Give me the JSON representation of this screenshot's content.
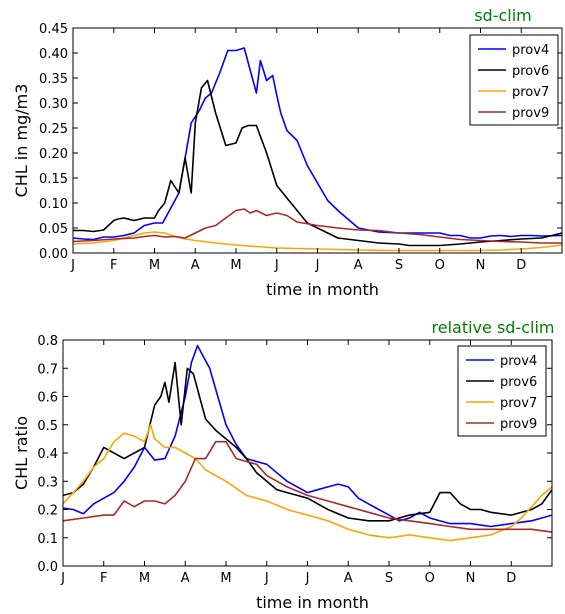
{
  "chart_data": [
    {
      "type": "line",
      "title": "sd-clim",
      "title_color": "#008000",
      "xlabel": "time in month",
      "ylabel": "CHL in mg/m3",
      "x_tick_labels": [
        "J",
        "F",
        "M",
        "A",
        "M",
        "J",
        "J",
        "A",
        "S",
        "O",
        "N",
        "D"
      ],
      "y_ticks": [
        "0.00",
        "0.05",
        "0.10",
        "0.15",
        "0.20",
        "0.25",
        "0.30",
        "0.35",
        "0.40",
        "0.45"
      ],
      "ylim": [
        0,
        0.45
      ],
      "xlim": [
        0,
        12
      ],
      "grid": false,
      "legend_position": "top-right",
      "series": [
        {
          "name": "prov4",
          "color": "#0000ff",
          "x": [
            0,
            0.25,
            0.5,
            0.75,
            1,
            1.25,
            1.5,
            1.75,
            2,
            2.2,
            2.4,
            2.6,
            2.75,
            2.9,
            3.1,
            3.25,
            3.4,
            3.6,
            3.8,
            4.0,
            4.2,
            4.35,
            4.5,
            4.6,
            4.75,
            4.9,
            5.0,
            5.1,
            5.25,
            5.5,
            5.75,
            6.0,
            6.25,
            6.5,
            7.0,
            7.5,
            8.0,
            8.5,
            9.0,
            9.25,
            9.5,
            9.75,
            10.0,
            10.25,
            10.5,
            10.75,
            11.0,
            11.25,
            11.5,
            12.0
          ],
          "y": [
            0.03,
            0.028,
            0.027,
            0.032,
            0.032,
            0.035,
            0.04,
            0.055,
            0.06,
            0.06,
            0.09,
            0.12,
            0.19,
            0.26,
            0.285,
            0.31,
            0.32,
            0.36,
            0.405,
            0.405,
            0.41,
            0.365,
            0.32,
            0.385,
            0.345,
            0.355,
            0.315,
            0.28,
            0.245,
            0.225,
            0.175,
            0.14,
            0.105,
            0.085,
            0.05,
            0.042,
            0.04,
            0.04,
            0.04,
            0.035,
            0.035,
            0.03,
            0.03,
            0.034,
            0.035,
            0.033,
            0.035,
            0.035,
            0.034,
            0.035
          ]
        },
        {
          "name": "prov6",
          "color": "#000000",
          "x": [
            0,
            0.25,
            0.5,
            0.75,
            1.0,
            1.1,
            1.25,
            1.5,
            1.75,
            2.0,
            2.1,
            2.25,
            2.4,
            2.6,
            2.75,
            2.9,
            3.0,
            3.15,
            3.3,
            3.5,
            3.75,
            4.0,
            4.15,
            4.3,
            4.5,
            4.75,
            5.0,
            5.25,
            5.5,
            5.75,
            6.0,
            6.25,
            6.5,
            7.0,
            7.5,
            8.0,
            8.25,
            8.5,
            9.0,
            9.5,
            10.0,
            10.5,
            11.0,
            11.5,
            12.0
          ],
          "y": [
            0.045,
            0.045,
            0.043,
            0.046,
            0.065,
            0.068,
            0.07,
            0.065,
            0.07,
            0.07,
            0.085,
            0.1,
            0.145,
            0.12,
            0.19,
            0.12,
            0.26,
            0.33,
            0.345,
            0.28,
            0.215,
            0.22,
            0.25,
            0.255,
            0.255,
            0.2,
            0.135,
            0.11,
            0.085,
            0.06,
            0.05,
            0.04,
            0.03,
            0.025,
            0.02,
            0.018,
            0.015,
            0.015,
            0.015,
            0.018,
            0.022,
            0.025,
            0.028,
            0.03,
            0.04
          ]
        },
        {
          "name": "prov7",
          "color": "#ffa500",
          "x": [
            0,
            0.5,
            1.0,
            1.5,
            1.75,
            2.0,
            2.25,
            2.5,
            2.75,
            3.0,
            3.5,
            4.0,
            4.5,
            5.0,
            5.5,
            6.0,
            7.0,
            8.0,
            9.0,
            10.0,
            10.5,
            11.0,
            11.5,
            12.0
          ],
          "y": [
            0.018,
            0.02,
            0.025,
            0.035,
            0.04,
            0.042,
            0.04,
            0.033,
            0.028,
            0.025,
            0.02,
            0.016,
            0.013,
            0.01,
            0.009,
            0.008,
            0.006,
            0.005,
            0.005,
            0.005,
            0.006,
            0.008,
            0.011,
            0.016
          ]
        },
        {
          "name": "prov9",
          "color": "#a52a2a",
          "x": [
            0,
            0.5,
            1.0,
            1.5,
            1.75,
            2.0,
            2.25,
            2.5,
            2.75,
            3.0,
            3.25,
            3.5,
            3.75,
            4.0,
            4.2,
            4.35,
            4.5,
            4.75,
            5.0,
            5.25,
            5.5,
            6.0,
            6.5,
            7.0,
            7.5,
            8.0,
            8.5,
            9.0,
            9.5,
            10.0,
            10.5,
            11.0,
            11.5,
            12.0
          ],
          "y": [
            0.023,
            0.025,
            0.028,
            0.03,
            0.033,
            0.035,
            0.032,
            0.033,
            0.03,
            0.04,
            0.05,
            0.055,
            0.07,
            0.085,
            0.088,
            0.08,
            0.085,
            0.075,
            0.08,
            0.075,
            0.062,
            0.055,
            0.05,
            0.046,
            0.045,
            0.04,
            0.037,
            0.032,
            0.027,
            0.025,
            0.023,
            0.022,
            0.02,
            0.02
          ]
        }
      ]
    },
    {
      "type": "line",
      "title": "relative sd-clim",
      "title_color": "#008000",
      "xlabel": "time in month",
      "ylabel": "CHL ratio",
      "x_tick_labels": [
        "J",
        "F",
        "M",
        "A",
        "M",
        "J",
        "J",
        "A",
        "S",
        "O",
        "N",
        "D"
      ],
      "y_ticks": [
        "0.0",
        "0.1",
        "0.2",
        "0.3",
        "0.4",
        "0.5",
        "0.6",
        "0.7",
        "0.8"
      ],
      "ylim": [
        0,
        0.8
      ],
      "xlim": [
        0,
        12
      ],
      "grid": false,
      "legend_position": "top-right",
      "series": [
        {
          "name": "prov4",
          "color": "#0000ff",
          "x": [
            0,
            0.25,
            0.5,
            0.75,
            1.0,
            1.25,
            1.5,
            1.75,
            2.0,
            2.25,
            2.5,
            2.75,
            3.0,
            3.15,
            3.3,
            3.45,
            3.6,
            3.8,
            4.0,
            4.25,
            4.5,
            4.75,
            5.0,
            5.25,
            5.5,
            6.0,
            6.25,
            6.5,
            6.75,
            7.0,
            7.25,
            7.5,
            7.75,
            8.0,
            8.25,
            8.5,
            8.75,
            9.0,
            9.5,
            10.0,
            10.5,
            11.0,
            11.5,
            11.75,
            12.0
          ],
          "y": [
            0.205,
            0.2,
            0.185,
            0.22,
            0.24,
            0.26,
            0.3,
            0.35,
            0.42,
            0.375,
            0.38,
            0.46,
            0.6,
            0.72,
            0.78,
            0.74,
            0.7,
            0.6,
            0.5,
            0.43,
            0.38,
            0.37,
            0.36,
            0.33,
            0.3,
            0.26,
            0.27,
            0.28,
            0.29,
            0.28,
            0.24,
            0.22,
            0.2,
            0.18,
            0.16,
            0.17,
            0.19,
            0.17,
            0.15,
            0.15,
            0.14,
            0.15,
            0.16,
            0.17,
            0.18
          ]
        },
        {
          "name": "prov6",
          "color": "#000000",
          "x": [
            0,
            0.25,
            0.5,
            0.75,
            1.0,
            1.25,
            1.5,
            1.75,
            2.0,
            2.25,
            2.4,
            2.5,
            2.6,
            2.75,
            2.9,
            3.05,
            3.2,
            3.35,
            3.5,
            3.75,
            4.0,
            4.25,
            4.5,
            4.75,
            5.0,
            5.25,
            5.5,
            5.75,
            6.0,
            6.5,
            7.0,
            7.5,
            8.0,
            8.5,
            9.0,
            9.25,
            9.5,
            9.75,
            10.0,
            10.25,
            10.5,
            11.0,
            11.5,
            11.75,
            12.0
          ],
          "y": [
            0.25,
            0.26,
            0.29,
            0.35,
            0.42,
            0.4,
            0.38,
            0.4,
            0.42,
            0.57,
            0.6,
            0.65,
            0.58,
            0.72,
            0.5,
            0.7,
            0.68,
            0.6,
            0.52,
            0.48,
            0.45,
            0.42,
            0.38,
            0.33,
            0.3,
            0.27,
            0.26,
            0.25,
            0.24,
            0.2,
            0.17,
            0.16,
            0.16,
            0.18,
            0.19,
            0.26,
            0.26,
            0.22,
            0.2,
            0.2,
            0.19,
            0.18,
            0.2,
            0.22,
            0.27
          ]
        },
        {
          "name": "prov7",
          "color": "#ffa500",
          "x": [
            0,
            0.25,
            0.5,
            0.75,
            1.0,
            1.25,
            1.5,
            1.75,
            2.0,
            2.15,
            2.25,
            2.5,
            2.75,
            3.0,
            3.25,
            3.5,
            4.0,
            4.5,
            5.0,
            5.5,
            6.0,
            6.5,
            7.0,
            7.5,
            8.0,
            8.5,
            9.0,
            9.5,
            10.0,
            10.5,
            11.0,
            11.25,
            11.5,
            11.75,
            12.0
          ],
          "y": [
            0.22,
            0.26,
            0.3,
            0.35,
            0.38,
            0.44,
            0.47,
            0.46,
            0.44,
            0.5,
            0.45,
            0.42,
            0.42,
            0.4,
            0.38,
            0.34,
            0.3,
            0.25,
            0.23,
            0.2,
            0.18,
            0.16,
            0.13,
            0.11,
            0.1,
            0.11,
            0.1,
            0.09,
            0.1,
            0.11,
            0.14,
            0.17,
            0.21,
            0.25,
            0.28
          ]
        },
        {
          "name": "prov9",
          "color": "#a52a2a",
          "x": [
            0,
            0.5,
            1.0,
            1.25,
            1.5,
            1.75,
            2.0,
            2.25,
            2.5,
            2.75,
            3.0,
            3.25,
            3.5,
            3.75,
            4.0,
            4.25,
            4.5,
            4.75,
            5.0,
            5.5,
            6.0,
            6.5,
            7.0,
            7.5,
            8.0,
            8.5,
            9.0,
            9.5,
            10.0,
            10.5,
            11.0,
            11.5,
            12.0
          ],
          "y": [
            0.16,
            0.17,
            0.18,
            0.18,
            0.23,
            0.21,
            0.23,
            0.23,
            0.22,
            0.25,
            0.3,
            0.38,
            0.38,
            0.44,
            0.44,
            0.38,
            0.37,
            0.36,
            0.32,
            0.28,
            0.25,
            0.23,
            0.21,
            0.19,
            0.17,
            0.16,
            0.15,
            0.14,
            0.13,
            0.13,
            0.13,
            0.13,
            0.12
          ]
        }
      ]
    }
  ]
}
